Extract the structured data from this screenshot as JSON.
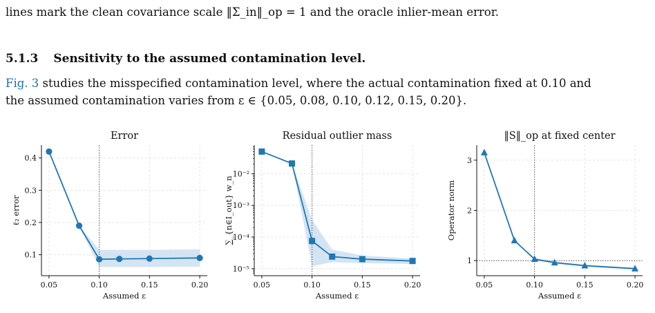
{
  "text": {
    "line1": "lines mark the clean covariance scale ‖Σ_in‖_op = 1 and the oracle inlier-mean error.",
    "section_number": "5.1.3",
    "section_title": "Sensitivity to the assumed contamination level.",
    "fig_ref": "Fig. 3",
    "line3_rest": " studies the misspecified contamination level, where the actual contamination fixed at 0.10 and",
    "line4": "the assumed contamination varies from ε ∈ {0.05, 0.08, 0.10, 0.12, 0.15, 0.20}."
  },
  "colors": {
    "series": "#1f77b4",
    "band": "#c6dbef",
    "ref_line": "#555555",
    "grid": "#dddddd"
  },
  "chart_data": [
    {
      "type": "line",
      "title": "Error",
      "xlabel": "Assumed ε",
      "ylabel": "ℓ₂ error",
      "x": [
        0.05,
        0.08,
        0.1,
        0.12,
        0.15,
        0.2
      ],
      "xticks": [
        "0.05",
        "0.10",
        "0.15",
        "0.20"
      ],
      "xlim": [
        0.0425,
        0.2075
      ],
      "ylim": [
        0.035,
        0.44
      ],
      "yscale": "linear",
      "yticks": [
        0.1,
        0.2,
        0.3,
        0.4
      ],
      "ytick_labels": [
        "0.1",
        "0.2",
        "0.3",
        "0.4"
      ],
      "marker": "circle",
      "series": [
        {
          "values": [
            0.42,
            0.19,
            0.086,
            0.087,
            0.088,
            0.09
          ]
        }
      ],
      "band": {
        "lower": [
          0.42,
          0.19,
          0.062,
          0.062,
          0.062,
          0.063
        ],
        "upper": [
          0.42,
          0.19,
          0.115,
          0.115,
          0.115,
          0.117
        ]
      },
      "vline_x": 0.1,
      "hline_y": null,
      "grid": true
    },
    {
      "type": "line",
      "title": "Residual outlier mass",
      "xlabel": "Assumed ε",
      "ylabel": "∑_{n∈I_out} w_n",
      "x": [
        0.05,
        0.08,
        0.1,
        0.12,
        0.15,
        0.2
      ],
      "xticks": [
        "0.05",
        "0.10",
        "0.15",
        "0.20"
      ],
      "xlim": [
        0.0425,
        0.2075
      ],
      "ylim": [
        6e-06,
        0.08
      ],
      "yscale": "log",
      "yticks": [
        1e-05,
        0.0001,
        0.001,
        0.01
      ],
      "ytick_labels": [
        "10⁻⁵",
        "10⁻⁴",
        "10⁻³",
        "10⁻²"
      ],
      "marker": "square",
      "series": [
        {
          "values": [
            0.05,
            0.021,
            7.5e-05,
            2.4e-05,
            2e-05,
            1.75e-05
          ]
        }
      ],
      "band": {
        "lower": [
          0.05,
          0.021,
          1.2e-05,
          1.6e-05,
          1.5e-05,
          1.4e-05
        ],
        "upper": [
          0.05,
          0.021,
          0.00035,
          4e-05,
          2.6e-05,
          2.1e-05
        ]
      },
      "vline_x": 0.1,
      "hline_y": null,
      "grid": true
    },
    {
      "type": "line",
      "title": "‖S‖_op at fixed center",
      "xlabel": "Assumed ε",
      "ylabel": "Operator norm",
      "x": [
        0.05,
        0.08,
        0.1,
        0.12,
        0.15,
        0.2
      ],
      "xticks": [
        "0.05",
        "0.10",
        "0.15",
        "0.20"
      ],
      "xlim": [
        0.0425,
        0.2075
      ],
      "ylim": [
        0.7,
        3.3
      ],
      "yscale": "linear",
      "yticks": [
        1,
        2,
        3
      ],
      "ytick_labels": [
        "1",
        "2",
        "3"
      ],
      "marker": "triangle",
      "series": [
        {
          "values": [
            3.15,
            1.4,
            1.03,
            0.96,
            0.9,
            0.84
          ]
        }
      ],
      "band": {
        "lower": [
          3.15,
          1.4,
          1.01,
          0.94,
          0.88,
          0.82
        ],
        "upper": [
          3.15,
          1.4,
          1.05,
          0.98,
          0.92,
          0.86
        ]
      },
      "vline_x": 0.1,
      "hline_y": 1,
      "grid": true
    }
  ]
}
